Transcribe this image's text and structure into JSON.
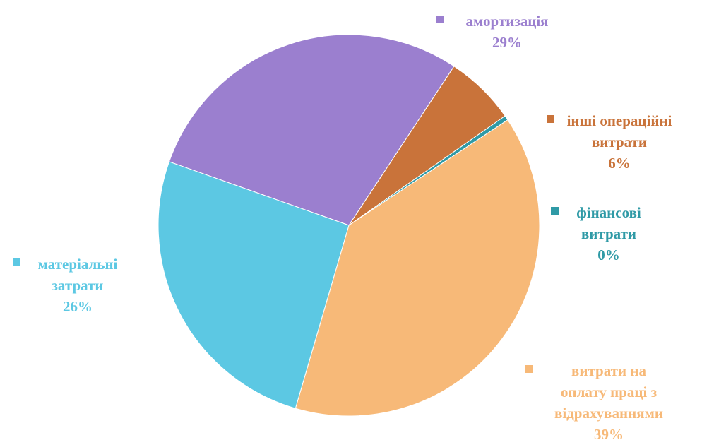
{
  "chart_data": {
    "type": "pie",
    "slices": [
      {
        "label_lines": [
          "амортизація"
        ],
        "percent_label": "29%",
        "value": 29,
        "color": "#9b7fcf"
      },
      {
        "label_lines": [
          "інші операційні",
          "витрати"
        ],
        "percent_label": "6%",
        "value": 6,
        "color": "#c9733a"
      },
      {
        "label_lines": [
          "фінансові",
          "витрати"
        ],
        "percent_label": "0%",
        "value": 0.4,
        "color": "#2f9aa6"
      },
      {
        "label_lines": [
          "витрати на",
          "оплату праці з",
          "відрахуваннями"
        ],
        "percent_label": "39%",
        "value": 39,
        "color": "#f7b978"
      },
      {
        "label_lines": [
          "матеріальні",
          "затрати"
        ],
        "percent_label": "26%",
        "value": 26,
        "color": "#5cc8e3"
      }
    ],
    "legend_placement": "labels beside slices with colored square markers"
  }
}
